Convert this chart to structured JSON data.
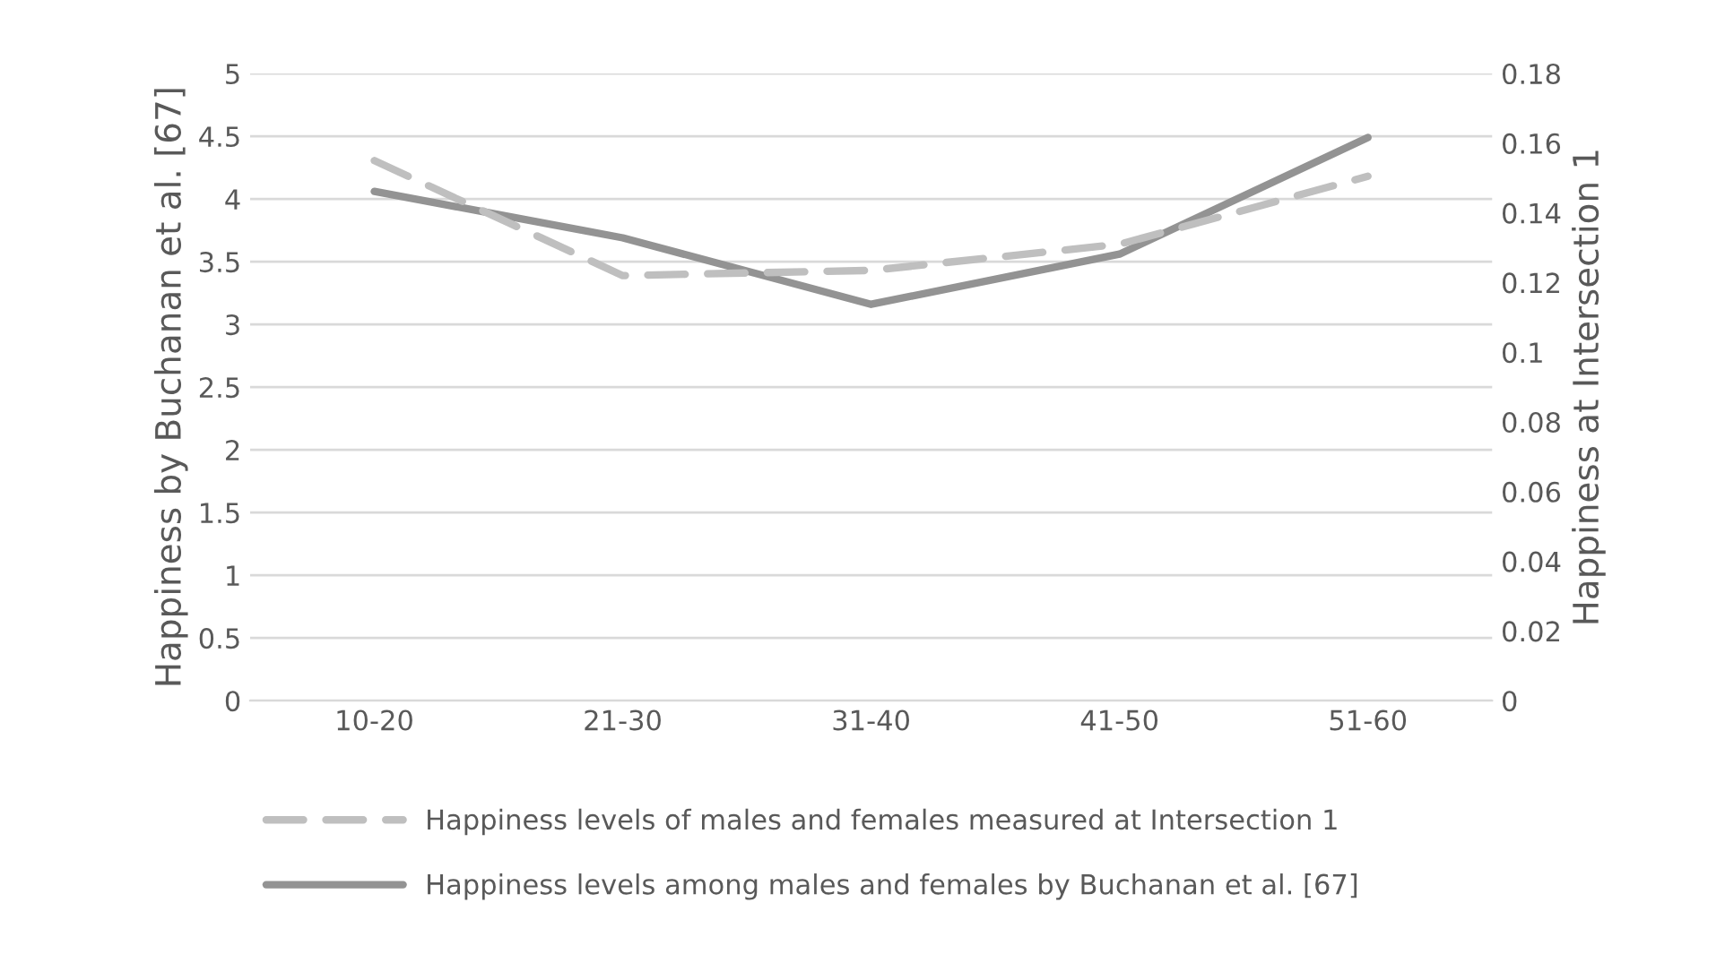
{
  "chart_data": {
    "type": "line",
    "categories": [
      "10-20",
      "21-30",
      "31-40",
      "41-50",
      "51-60"
    ],
    "series": [
      {
        "name": "Happiness levels of males and females measured at Intersection 1",
        "color": "#bfbfbf",
        "axis": "y2",
        "line_style": "dashed",
        "values": [
          0.155,
          0.122,
          0.1235,
          0.131,
          0.1505
        ]
      },
      {
        "name": "Happiness levels among males and females by Buchanan et al. [67]",
        "color": "#939393",
        "line_style": "solid",
        "values": [
          4.06,
          3.69,
          3.16,
          3.56,
          4.49
        ]
      }
    ],
    "ylabel": "Happiness by Buchanan et al. [67]",
    "y2label": "Happiness at Intersection 1",
    "ylim": [
      0,
      5
    ],
    "yticks": [
      0,
      0.5,
      1,
      1.5,
      2,
      2.5,
      3,
      3.5,
      4,
      4.5,
      5
    ],
    "y2lim": [
      0,
      0.18
    ],
    "y2ticks": [
      0,
      0.02,
      0.04,
      0.06,
      0.08,
      0.1,
      0.12,
      0.14,
      0.16,
      0.18
    ],
    "grid": "y",
    "legend": "bottom"
  }
}
